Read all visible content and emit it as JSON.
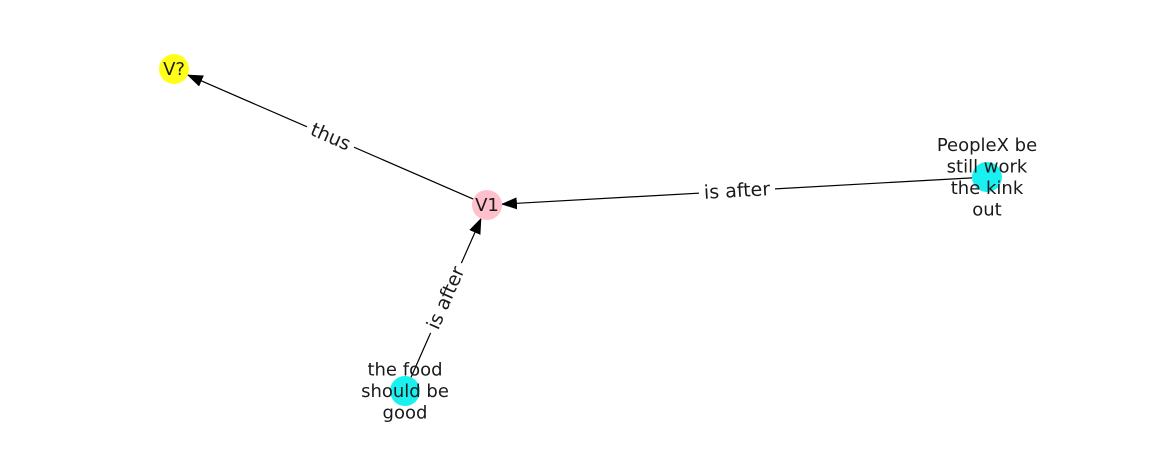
{
  "nodes": [
    {
      "id": "v_q",
      "label": [
        "V?"
      ],
      "color": "#ffff1a"
    },
    {
      "id": "v1",
      "label": [
        "V1"
      ],
      "color": "#ffc0cb"
    },
    {
      "id": "people",
      "label": [
        "PeopleX be",
        "still work",
        "the kink",
        "out"
      ],
      "color": "#1af0f0"
    },
    {
      "id": "food",
      "label": [
        "the food",
        "should be",
        "good"
      ],
      "color": "#1af0f0"
    }
  ],
  "edges": [
    {
      "from": "v1",
      "to": "v_q",
      "label": "thus"
    },
    {
      "from": "people",
      "to": "v1",
      "label": "is after"
    },
    {
      "from": "food",
      "to": "v1",
      "label": "is after"
    }
  ]
}
